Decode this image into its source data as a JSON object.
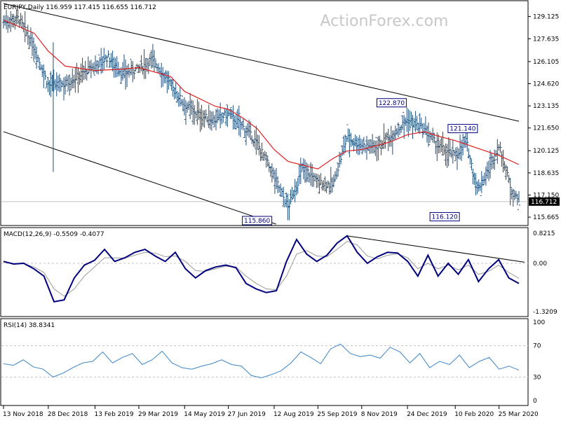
{
  "watermark": "ActionForex.com",
  "colors": {
    "bar": "#1f4e79",
    "sma": "#e01f1f",
    "macd": "#00007f",
    "signal": "#9a9a9a",
    "rsi": "#3a86c8",
    "trend": "#000000",
    "grid": "#c0c0c0",
    "price_box_bg": "#000000",
    "price_box_fg": "#ffffff"
  },
  "main": {
    "header": "EURJPY,Daily  116.959 117.415 116.655 116.712",
    "y_ticks": [
      "129.125",
      "127.635",
      "126.105",
      "124.620",
      "123.135",
      "121.650",
      "120.125",
      "118.635",
      "117.150",
      "115.665"
    ],
    "current_price": "116.712",
    "annotations": [
      {
        "text": "122.870"
      },
      {
        "text": "121.140"
      },
      {
        "text": "116.120"
      },
      {
        "text": "115.860"
      }
    ]
  },
  "macd": {
    "header": "MACD(12,26,9) -0.5509 -0.4077",
    "y_ticks": [
      "0.8215",
      "0.00",
      "-1.3209"
    ]
  },
  "rsi": {
    "header": "RSI(14) 38.8341",
    "y_ticks": [
      "100",
      "70",
      "30",
      "0"
    ]
  },
  "x_ticks": [
    "13 Nov 2018",
    "28 Dec 2018",
    "13 Feb 2019",
    "29 Mar 2019",
    "14 May 2019",
    "27 Jun 2019",
    "12 Aug 2019",
    "25 Sep 2019",
    "8 Nov 2019",
    "24 Dec 2019",
    "10 Feb 2020",
    "25 Mar 2020"
  ],
  "chart_data": [
    {
      "type": "ohlc",
      "title": "EURJPY,Daily",
      "ohlc_last": {
        "open": 116.959,
        "high": 117.415,
        "low": 116.655,
        "close": 116.712
      },
      "ylim": [
        115.2,
        130.0
      ],
      "close_path": [
        {
          "x": "13 Nov 2018",
          "y": 128.8
        },
        {
          "x": "28 Nov 2018",
          "y": 129.0
        },
        {
          "x": "14 Dec 2018",
          "y": 127.0
        },
        {
          "x": "28 Dec 2018",
          "y": 124.5
        },
        {
          "x": "14 Jan 2019",
          "y": 124.6
        },
        {
          "x": "28 Jan 2019",
          "y": 125.2
        },
        {
          "x": "13 Feb 2019",
          "y": 125.8
        },
        {
          "x": "26 Feb 2019",
          "y": 126.4
        },
        {
          "x": "13 Mar 2019",
          "y": 125.3
        },
        {
          "x": "29 Mar 2019",
          "y": 125.6
        },
        {
          "x": "12 Apr 2019",
          "y": 126.3
        },
        {
          "x": "30 Apr 2019",
          "y": 124.5
        },
        {
          "x": "14 May 2019",
          "y": 123.2
        },
        {
          "x": "31 May 2019",
          "y": 122.4
        },
        {
          "x": "14 Jun 2019",
          "y": 122.2
        },
        {
          "x": "27 Jun 2019",
          "y": 122.6
        },
        {
          "x": "12 Jul 2019",
          "y": 121.7
        },
        {
          "x": "26 Jul 2019",
          "y": 120.6
        },
        {
          "x": "12 Aug 2019",
          "y": 118.4
        },
        {
          "x": "26 Aug 2019",
          "y": 116.3
        },
        {
          "x": "10 Sep 2019",
          "y": 119.0
        },
        {
          "x": "25 Sep 2019",
          "y": 118.0
        },
        {
          "x": "10 Oct 2019",
          "y": 117.8
        },
        {
          "x": "24 Oct 2019",
          "y": 121.0
        },
        {
          "x": "8 Nov 2019",
          "y": 120.5
        },
        {
          "x": "22 Nov 2019",
          "y": 120.4
        },
        {
          "x": "6 Dec 2019",
          "y": 121.0
        },
        {
          "x": "24 Dec 2019",
          "y": 122.2
        },
        {
          "x": "10 Jan 2020",
          "y": 121.5
        },
        {
          "x": "24 Jan 2020",
          "y": 120.4
        },
        {
          "x": "10 Feb 2020",
          "y": 119.8
        },
        {
          "x": "21 Feb 2020",
          "y": 120.8
        },
        {
          "x": "3 Mar 2020",
          "y": 117.5
        },
        {
          "x": "13 Mar 2020",
          "y": 118.6
        },
        {
          "x": "25 Mar 2020",
          "y": 120.4
        },
        {
          "x": "7 Apr 2020",
          "y": 117.4
        },
        {
          "x": "14 Apr 2020",
          "y": 116.7
        }
      ],
      "sma_path": [
        {
          "x": "13 Nov 2018",
          "y": 128.9
        },
        {
          "x": "14 Dec 2018",
          "y": 128.0
        },
        {
          "x": "28 Dec 2018",
          "y": 126.8
        },
        {
          "x": "14 Jan 2019",
          "y": 125.8
        },
        {
          "x": "13 Feb 2019",
          "y": 125.5
        },
        {
          "x": "13 Mar 2019",
          "y": 125.6
        },
        {
          "x": "29 Mar 2019",
          "y": 125.7
        },
        {
          "x": "30 Apr 2019",
          "y": 125.1
        },
        {
          "x": "14 May 2019",
          "y": 124.1
        },
        {
          "x": "14 Jun 2019",
          "y": 123.1
        },
        {
          "x": "27 Jun 2019",
          "y": 122.9
        },
        {
          "x": "12 Jul 2019",
          "y": 122.3
        },
        {
          "x": "26 Jul 2019",
          "y": 121.6
        },
        {
          "x": "12 Aug 2019",
          "y": 120.2
        },
        {
          "x": "26 Aug 2019",
          "y": 119.4
        },
        {
          "x": "25 Sep 2019",
          "y": 118.9
        },
        {
          "x": "10 Oct 2019",
          "y": 119.6
        },
        {
          "x": "24 Oct 2019",
          "y": 120.1
        },
        {
          "x": "8 Nov 2019",
          "y": 120.2
        },
        {
          "x": "6 Dec 2019",
          "y": 120.7
        },
        {
          "x": "24 Dec 2019",
          "y": 121.2
        },
        {
          "x": "10 Jan 2020",
          "y": 121.4
        },
        {
          "x": "24 Jan 2020",
          "y": 121.1
        },
        {
          "x": "10 Feb 2020",
          "y": 120.8
        },
        {
          "x": "3 Mar 2020",
          "y": 120.3
        },
        {
          "x": "25 Mar 2020",
          "y": 119.8
        },
        {
          "x": "14 Apr 2020",
          "y": 119.2
        }
      ],
      "trendlines": [
        {
          "from": {
            "x": "13 Nov 2018",
            "y": 130.0
          },
          "to": {
            "x": "14 Apr 2020",
            "y": 122.1
          }
        },
        {
          "from": {
            "x": "13 Nov 2018",
            "y": 121.4
          },
          "to": {
            "x": "14 Aug 2019",
            "y": 115.2
          }
        }
      ]
    },
    {
      "type": "line",
      "title": "MACD(12,26,9)",
      "ylim": [
        -1.3209,
        0.8215
      ],
      "last": {
        "macd": -0.5509,
        "signal": -0.4077
      },
      "series": [
        {
          "name": "MACD",
          "values": [
            0.05,
            -0.02,
            0.0,
            -0.15,
            -0.35,
            -1.05,
            -1.0,
            -0.4,
            -0.05,
            0.08,
            0.38,
            0.05,
            0.15,
            0.3,
            0.38,
            0.2,
            0.05,
            0.3,
            -0.15,
            -0.4,
            -0.2,
            -0.1,
            -0.05,
            -0.12,
            -0.55,
            -0.7,
            -0.8,
            -0.75,
            0.05,
            0.65,
            0.25,
            0.05,
            0.22,
            0.55,
            0.75,
            0.3,
            0.0,
            0.18,
            0.3,
            0.28,
            0.05,
            -0.35,
            0.22,
            -0.35,
            0.0,
            -0.3,
            0.1,
            -0.5,
            -0.15,
            0.1,
            -0.4,
            -0.55
          ]
        },
        {
          "name": "Signal",
          "values": [
            0.03,
            0.0,
            -0.01,
            -0.1,
            -0.25,
            -0.7,
            -0.9,
            -0.7,
            -0.35,
            -0.1,
            0.15,
            0.15,
            0.14,
            0.22,
            0.3,
            0.28,
            0.18,
            0.2,
            0.05,
            -0.2,
            -0.22,
            -0.15,
            -0.08,
            -0.1,
            -0.35,
            -0.55,
            -0.7,
            -0.72,
            -0.35,
            0.25,
            0.35,
            0.2,
            0.18,
            0.38,
            0.6,
            0.5,
            0.2,
            0.12,
            0.22,
            0.26,
            0.15,
            -0.15,
            0.0,
            -0.15,
            -0.05,
            -0.18,
            -0.05,
            -0.3,
            -0.22,
            -0.05,
            -0.25,
            -0.41
          ]
        }
      ]
    },
    {
      "type": "line",
      "title": "RSI(14)",
      "ylim": [
        0,
        100
      ],
      "last": 38.8341,
      "series": [
        {
          "name": "RSI",
          "values": [
            47,
            45,
            52,
            43,
            40,
            30,
            35,
            42,
            48,
            50,
            62,
            48,
            55,
            60,
            46,
            52,
            63,
            48,
            42,
            40,
            44,
            47,
            52,
            46,
            44,
            32,
            29,
            33,
            38,
            48,
            62,
            55,
            47,
            66,
            72,
            60,
            56,
            58,
            54,
            68,
            62,
            48,
            60,
            42,
            50,
            46,
            58,
            42,
            50,
            55,
            40,
            44,
            38.8
          ]
        }
      ]
    }
  ]
}
